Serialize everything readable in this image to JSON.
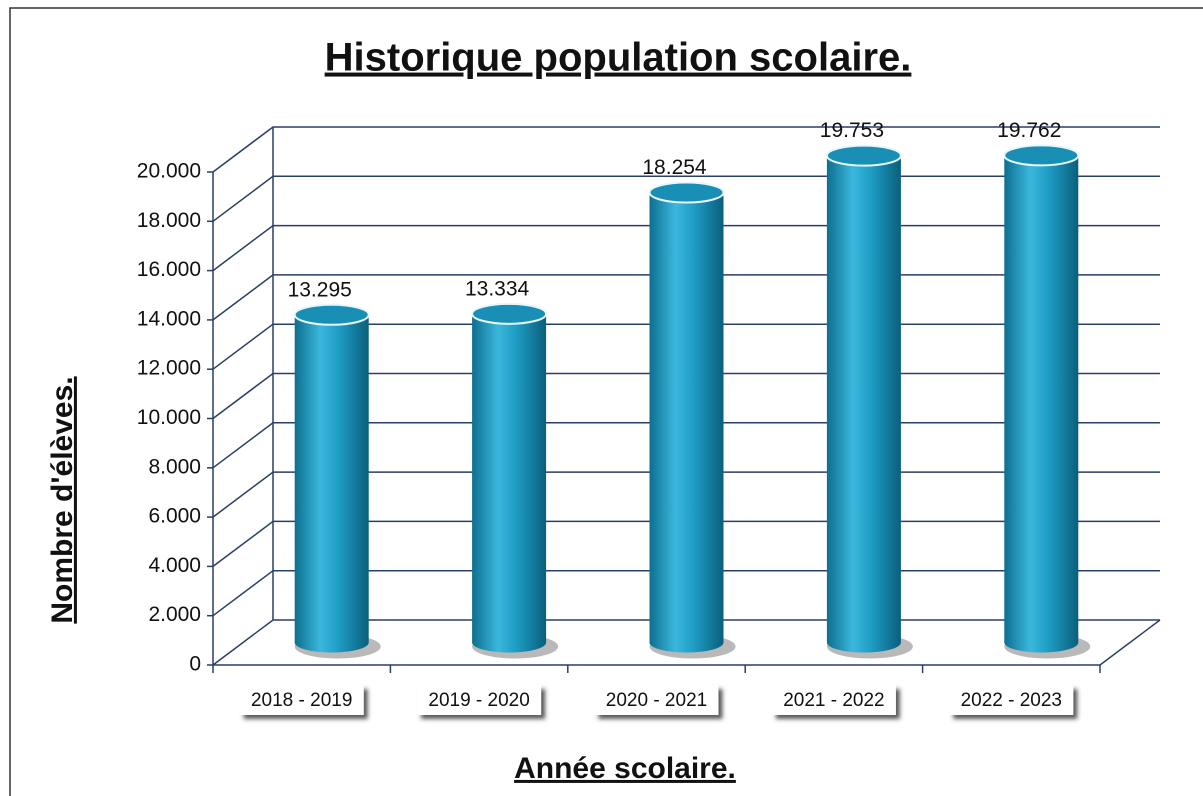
{
  "chart_data": {
    "type": "bar3d",
    "title": "Historique population scolaire.",
    "x_label": "Année scolaire.",
    "y_label": "Nombre d'élèves.",
    "categories": [
      "2018 - 2019",
      "2019 - 2020",
      "2020 - 2021",
      "2021 - 2022",
      "2022 - 2023"
    ],
    "values": [
      13295,
      13334,
      18254,
      19753,
      19762
    ],
    "value_labels": [
      "13.295",
      "13.334",
      "18.254",
      "19.753",
      "19.762"
    ],
    "color": "#1e9cc4",
    "ylim": [
      0,
      20000
    ],
    "yticks": [
      0,
      {
        "value": 2000,
        "label": "2.000"
      },
      {
        "value": 4000,
        "label": "4.000"
      },
      {
        "value": 6000,
        "label": "6.000"
      },
      {
        "value": 8000,
        "label": "8.000"
      },
      {
        "value": 10000,
        "label": "10.000"
      },
      {
        "value": 12000,
        "label": "12.000"
      },
      {
        "value": 14000,
        "label": "14.000"
      },
      {
        "value": 16000,
        "label": "16.000"
      },
      {
        "value": 18000,
        "label": "18.000"
      },
      {
        "value": 20000,
        "label": "20.000"
      }
    ],
    "grid": true
  }
}
